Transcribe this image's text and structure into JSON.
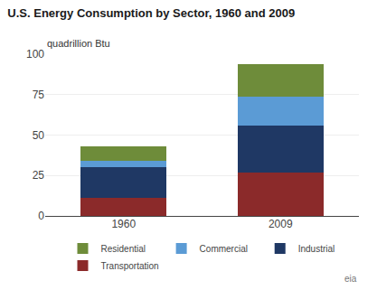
{
  "chart_data": {
    "type": "bar",
    "title": "U.S. Energy Consumption by Sector, 1960 and 2009",
    "subtitle": "quadrillion Btu",
    "categories": [
      "1960",
      "2009"
    ],
    "series": [
      {
        "name": "Transportation",
        "color": "#8b2a2a",
        "values": [
          11,
          27
        ]
      },
      {
        "name": "Industrial",
        "color": "#1f3864",
        "values": [
          19,
          29
        ]
      },
      {
        "name": "Commercial",
        "color": "#5b9bd5",
        "values": [
          4,
          18
        ]
      },
      {
        "name": "Residential",
        "color": "#6e8c3a",
        "values": [
          9,
          20
        ]
      }
    ],
    "stacked": true,
    "ylim": [
      0,
      100
    ],
    "yticks": [
      0,
      25,
      50,
      75,
      100
    ],
    "grid": true,
    "legend": "bottom",
    "annotations": [
      "eia"
    ]
  }
}
